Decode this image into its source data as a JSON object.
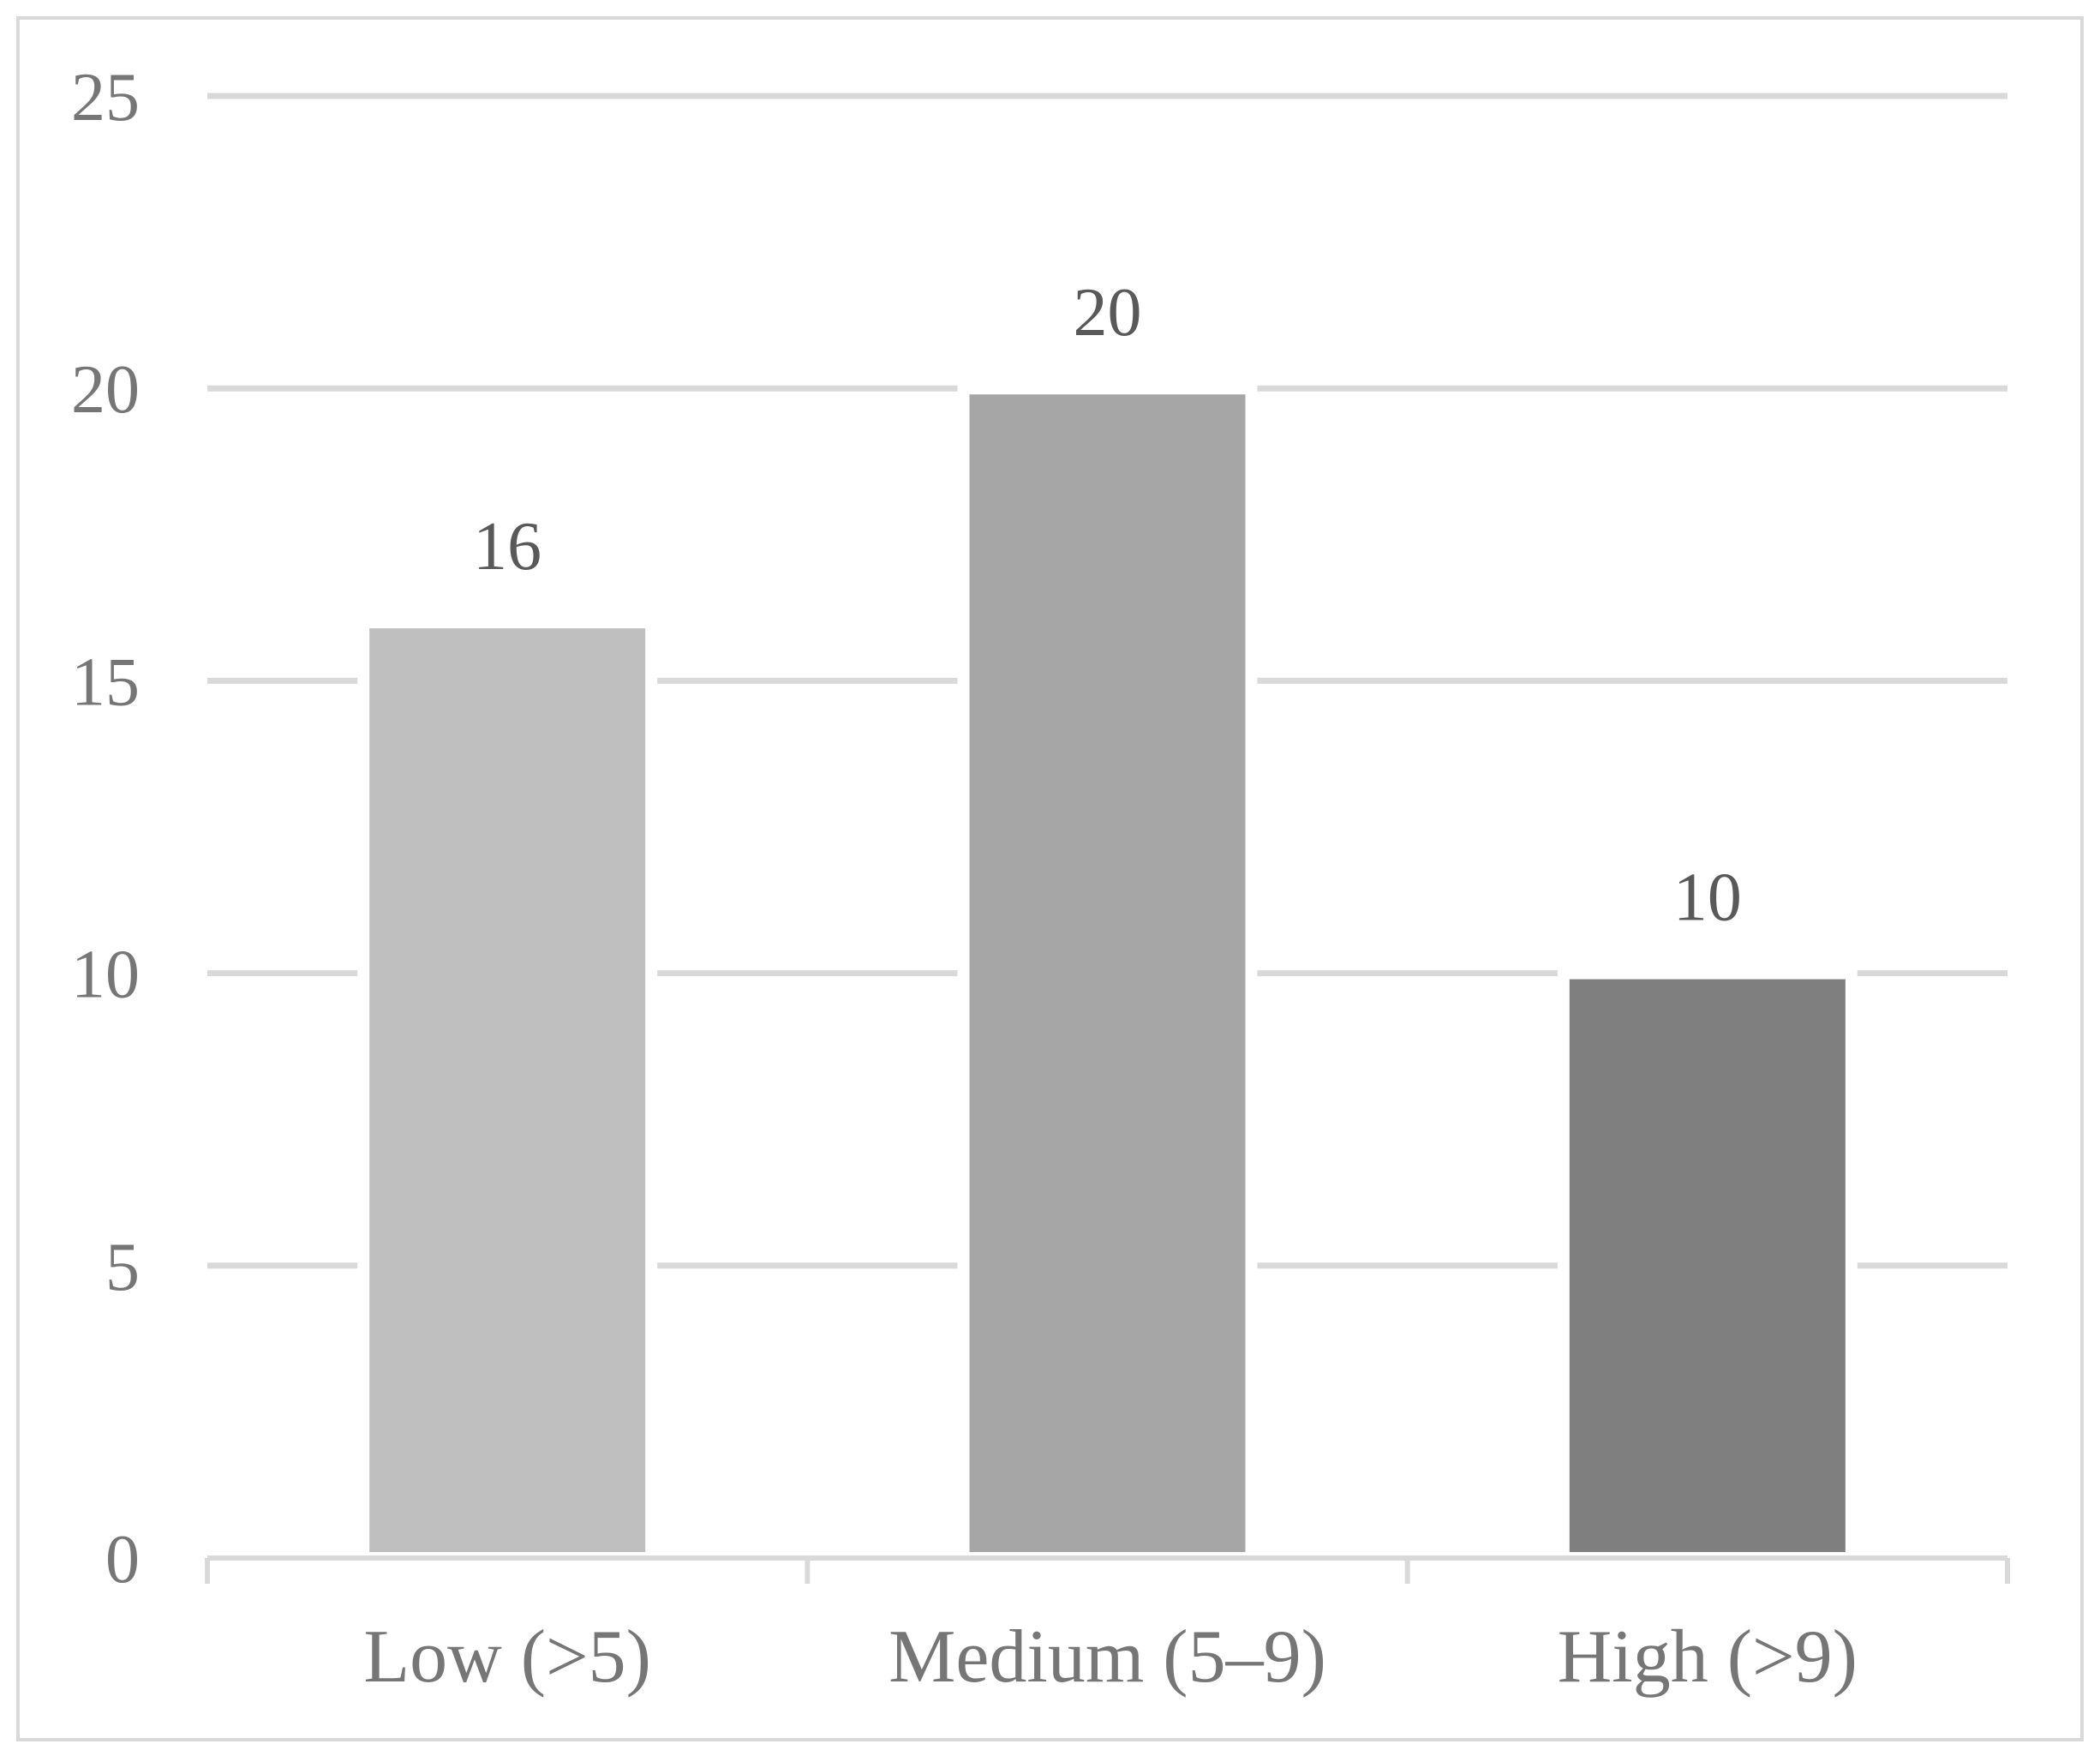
{
  "chart_data": {
    "type": "bar",
    "categories": [
      "Low (>5)",
      "Medium (5–9)",
      "High (>9)"
    ],
    "values": [
      16,
      20,
      10
    ],
    "data_labels": [
      "16",
      "20",
      "10"
    ],
    "bar_colors": [
      "#bfbfbf",
      "#a6a6a6",
      "#7f7f7f"
    ],
    "ylim": [
      0,
      25
    ],
    "yticks": [
      0,
      5,
      10,
      15,
      20,
      25
    ],
    "ytick_labels": [
      "0",
      "5",
      "10",
      "15",
      "20",
      "25"
    ],
    "title": "",
    "xlabel": "",
    "ylabel": "",
    "grid": true,
    "legend": "none"
  }
}
